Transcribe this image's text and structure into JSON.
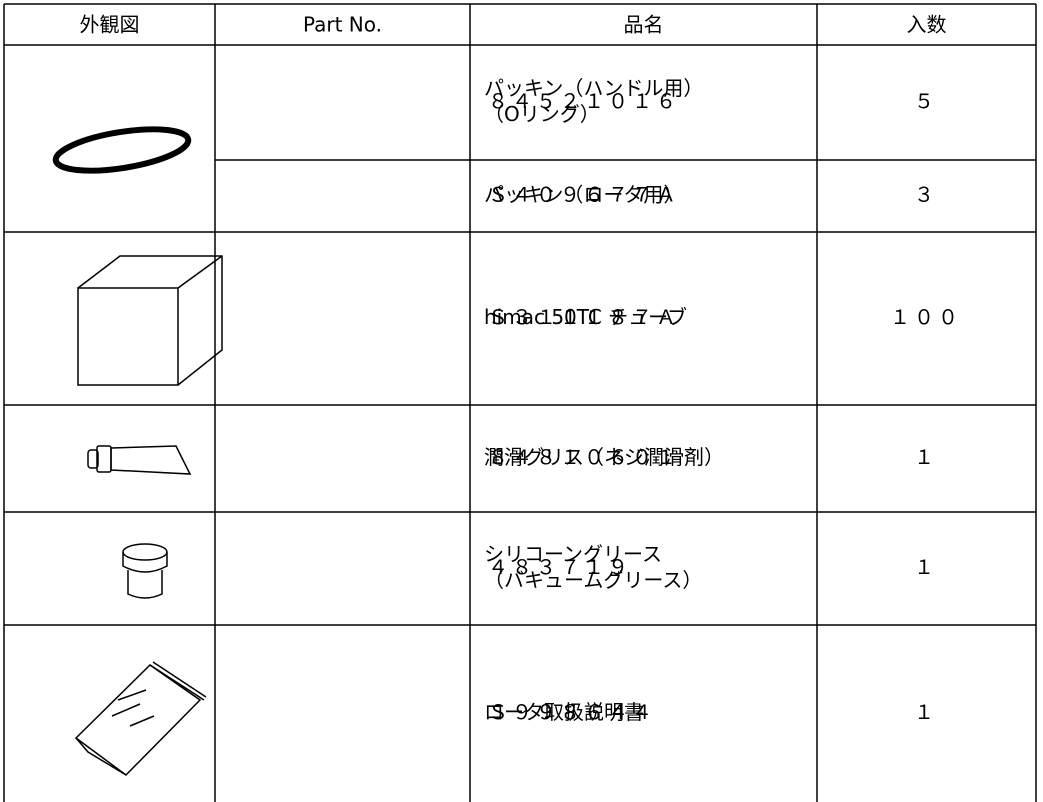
{
  "table": {
    "header": [
      "外観図",
      "Part No.",
      "品名",
      "入数"
    ],
    "rows": [
      {
        "part_no": "８４５２１０１６",
        "name": [
          "パッキン（ハンドル用）",
          "（Oリング）"
        ],
        "qty": "５"
      },
      {
        "part_no": "Ｓ４０９６７７Ａ",
        "name": [
          "パッキン（ロータ用）"
        ],
        "qty": "３"
      },
      {
        "part_no": "Ｓ３１１１８７Ａ",
        "name": [
          "himac 50TC チューブ"
        ],
        "qty": "１００"
      },
      {
        "part_no": "８４８１０６０１",
        "name": [
          "潤滑グリス（ネジ潤滑剤）"
        ],
        "qty": "１"
      },
      {
        "part_no": "４８３７１９",
        "name": [
          "シリコーングリース",
          "（バキュームグリース）"
        ],
        "qty": "１"
      },
      {
        "part_no": "Ｓ９９８６４４",
        "name": [
          "ロータ取扱説明書"
        ],
        "qty": "１"
      }
    ]
  }
}
